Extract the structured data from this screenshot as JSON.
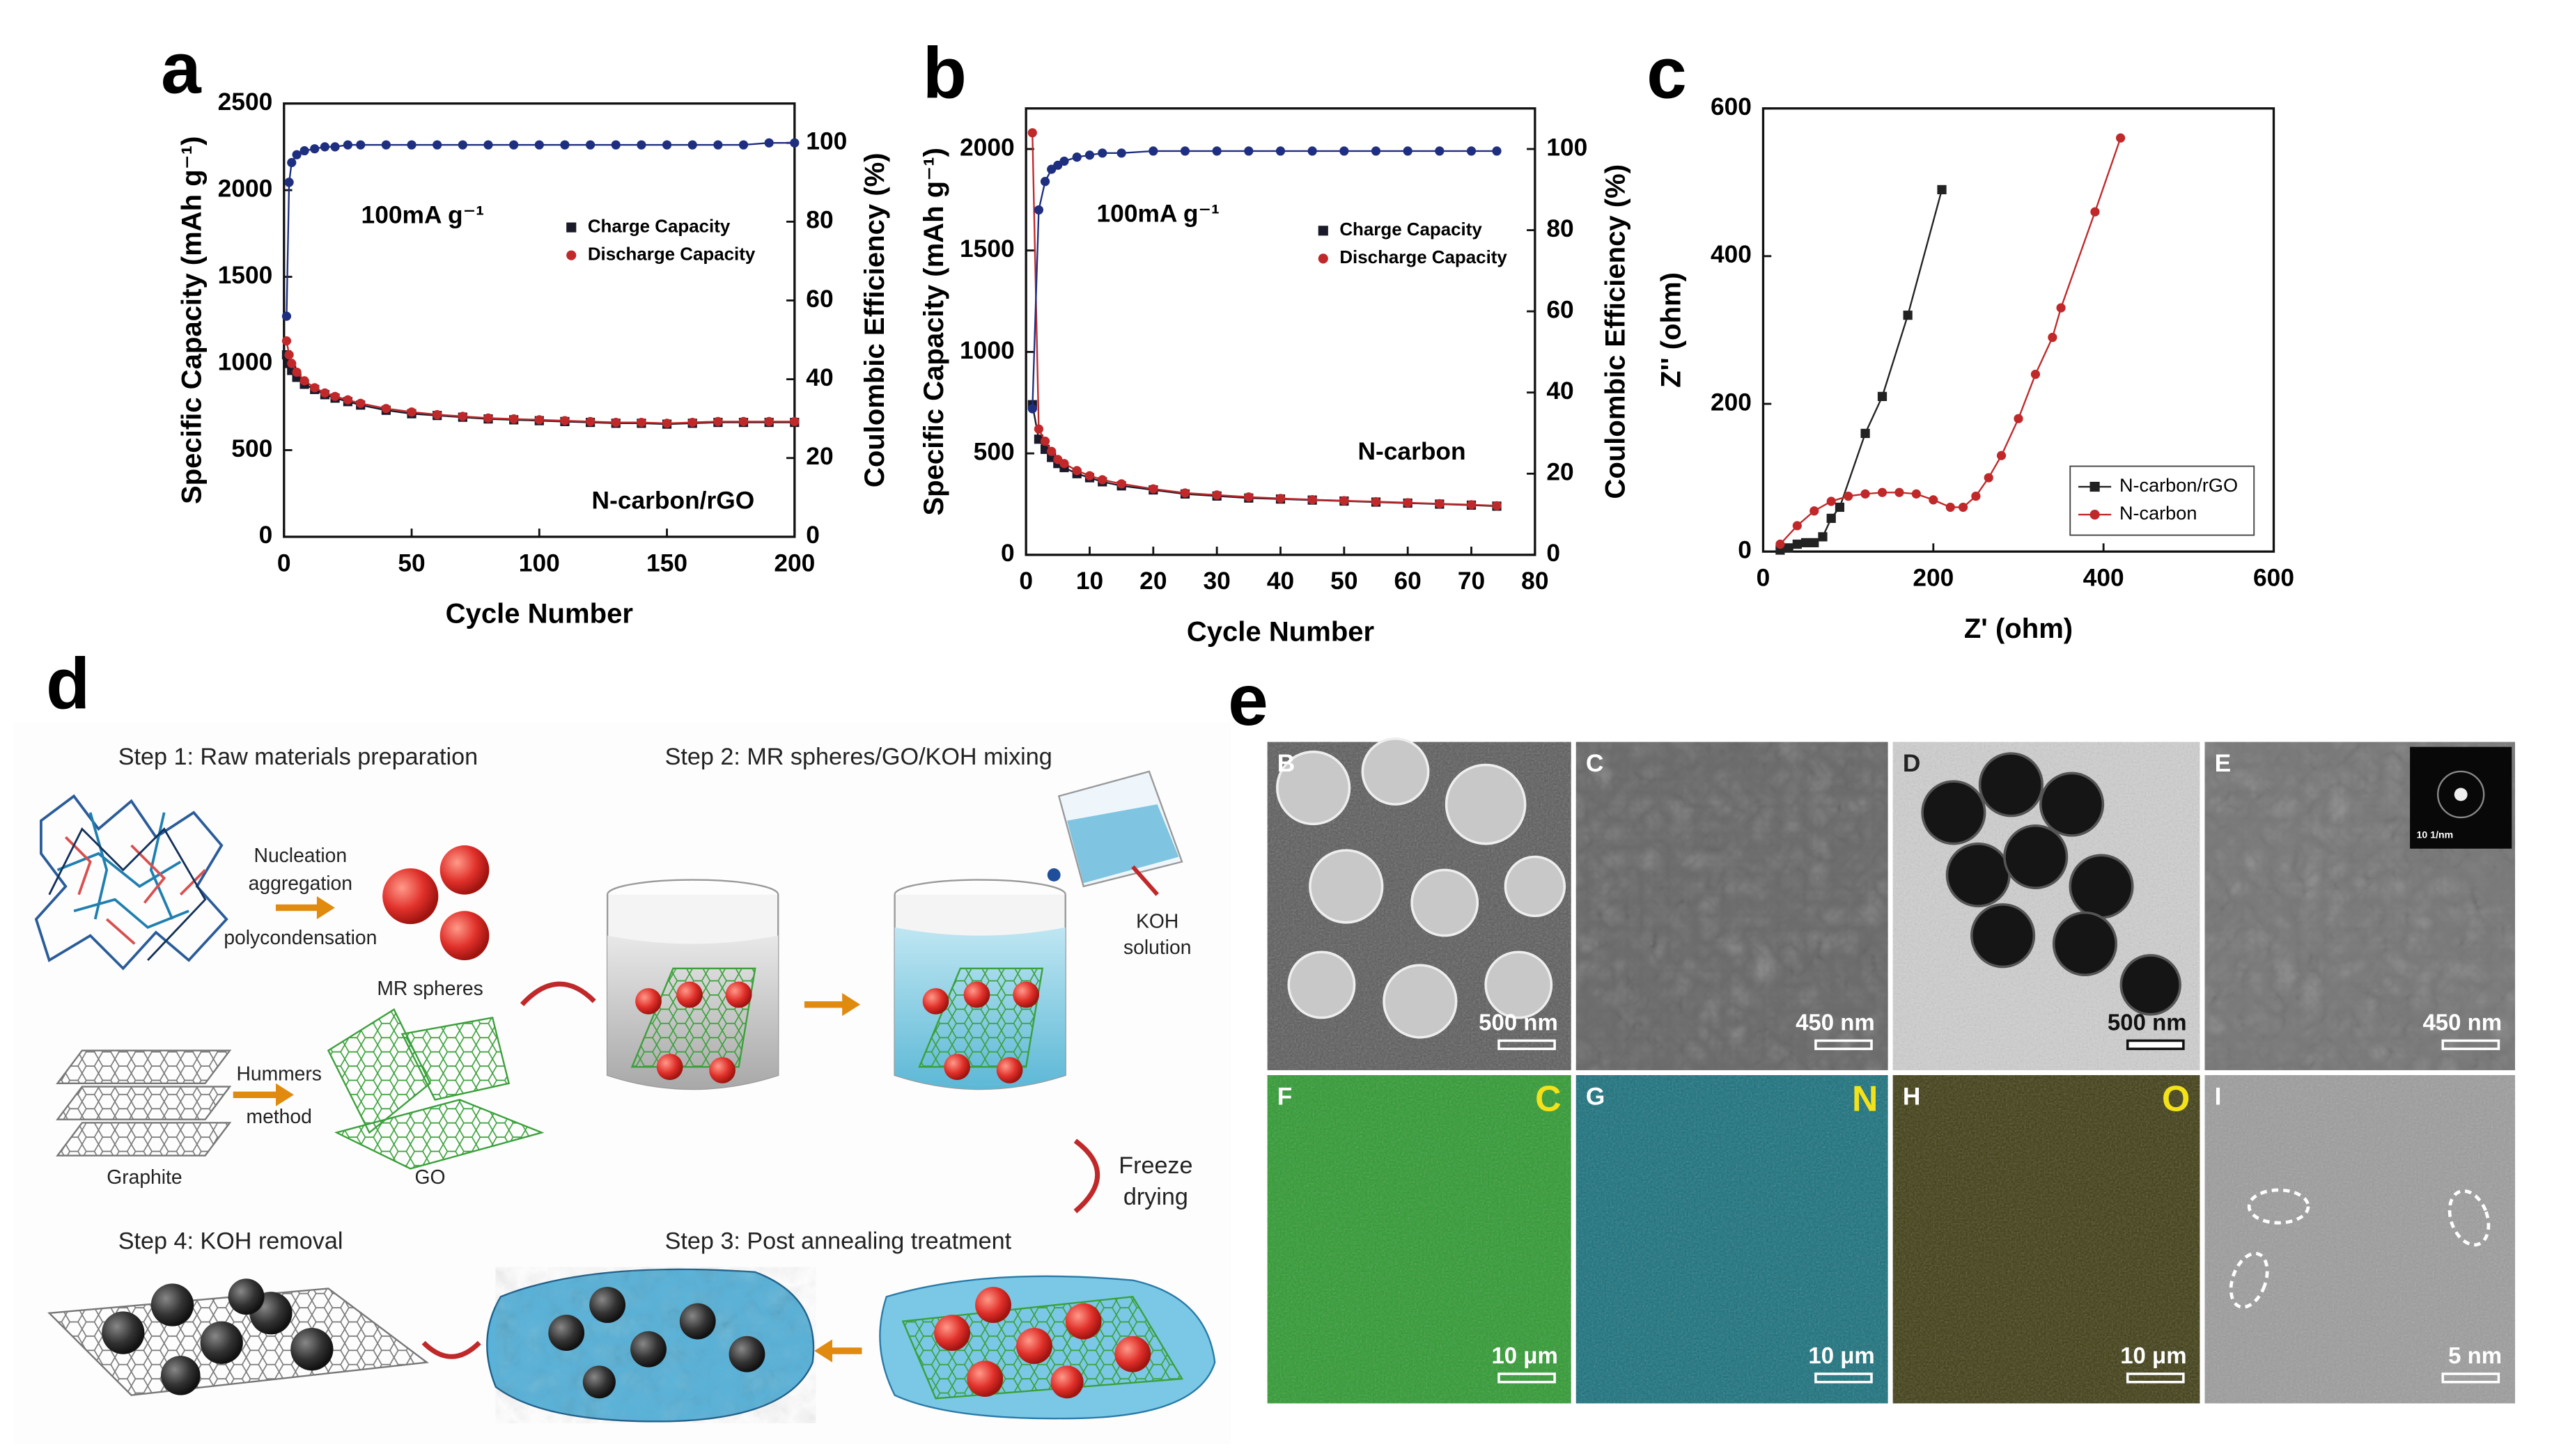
{
  "panel_labels": [
    "a",
    "b",
    "c",
    "d",
    "e"
  ],
  "chart_data": [
    {
      "type": "line",
      "xlabel": "Cycle Number",
      "ylabel": "Specific Capacity (mAh g⁻¹)",
      "y2label": "Coulombic Efficiency (%)",
      "annotations": [
        "100mA g⁻¹",
        "N-carbon/rGO"
      ],
      "xlim": [
        0,
        200
      ],
      "xticks": [
        0,
        50,
        100,
        150,
        200
      ],
      "ylim": [
        0,
        2500
      ],
      "yticks": [
        0,
        500,
        1000,
        1500,
        2000,
        2500
      ],
      "y2lim": [
        0,
        110
      ],
      "y2ticks": [
        0,
        20,
        40,
        60,
        80,
        100
      ],
      "legend": "upper right",
      "x": [
        1,
        2,
        3,
        5,
        8,
        12,
        16,
        20,
        25,
        30,
        40,
        50,
        60,
        70,
        80,
        90,
        100,
        110,
        120,
        130,
        140,
        150,
        160,
        170,
        180,
        190,
        200
      ],
      "series": [
        {
          "name": "Charge Capacity",
          "color": "#1a1a2a",
          "marker": "square",
          "values": [
            1050,
            1000,
            960,
            920,
            880,
            850,
            820,
            800,
            780,
            760,
            730,
            710,
            700,
            690,
            680,
            675,
            670,
            665,
            660,
            655,
            655,
            650,
            655,
            660,
            660,
            660,
            660
          ]
        },
        {
          "name": "Discharge Capacity",
          "color": "#c0282a",
          "marker": "circle",
          "values": [
            1130,
            1050,
            1000,
            950,
            900,
            860,
            830,
            810,
            790,
            770,
            740,
            720,
            705,
            695,
            685,
            680,
            675,
            670,
            665,
            660,
            660,
            655,
            660,
            665,
            665,
            665,
            665
          ]
        },
        {
          "color": "#1f2f80",
          "marker": "circle",
          "axis": "y2",
          "values": [
            56,
            90,
            95,
            97,
            98,
            98.5,
            99,
            99,
            99.5,
            99.5,
            99.5,
            99.5,
            99.5,
            99.5,
            99.5,
            99.5,
            99.5,
            99.5,
            99.5,
            99.5,
            99.5,
            99.5,
            99.5,
            99.5,
            99.5,
            100,
            100
          ]
        }
      ]
    },
    {
      "type": "line",
      "xlabel": "Cycle Number",
      "ylabel": "Specific Capacity (mAh g⁻¹)",
      "y2label": "Coulombic Efficiency (%)",
      "annotations": [
        "100mA g⁻¹",
        "N-carbon"
      ],
      "xlim": [
        0,
        80
      ],
      "xticks": [
        0,
        10,
        20,
        30,
        40,
        50,
        60,
        70,
        80
      ],
      "ylim": [
        0,
        2200
      ],
      "yticks": [
        0,
        500,
        1000,
        1500,
        2000
      ],
      "y2lim": [
        0,
        110
      ],
      "y2ticks": [
        0,
        20,
        40,
        60,
        80,
        100
      ],
      "legend": "upper right",
      "x": [
        1,
        2,
        3,
        4,
        5,
        6,
        8,
        10,
        12,
        15,
        20,
        25,
        30,
        35,
        40,
        45,
        50,
        55,
        60,
        65,
        70,
        74
      ],
      "series": [
        {
          "name": "Charge Capacity",
          "color": "#1a1a2a",
          "marker": "square",
          "values": [
            740,
            570,
            520,
            480,
            450,
            430,
            400,
            380,
            360,
            340,
            320,
            300,
            290,
            280,
            275,
            270,
            265,
            260,
            255,
            250,
            245,
            240
          ]
        },
        {
          "name": "Discharge Capacity",
          "color": "#c0282a",
          "marker": "circle",
          "values": [
            2080,
            620,
            560,
            510,
            470,
            450,
            415,
            390,
            370,
            350,
            325,
            305,
            295,
            285,
            278,
            272,
            267,
            262,
            257,
            252,
            247,
            242
          ]
        },
        {
          "color": "#1f2f80",
          "marker": "circle",
          "axis": "y2",
          "values": [
            36,
            85,
            92,
            95,
            96,
            97,
            98,
            98.5,
            99,
            99,
            99.5,
            99.5,
            99.5,
            99.5,
            99.5,
            99.5,
            99.5,
            99.5,
            99.5,
            99.5,
            99.5,
            99.5
          ]
        }
      ]
    },
    {
      "type": "line",
      "xlabel": "Z' (ohm)",
      "ylabel": "Z'' (ohm)",
      "annotations": [],
      "xlim": [
        0,
        600
      ],
      "xticks": [
        0,
        200,
        400,
        600
      ],
      "ylim": [
        0,
        600
      ],
      "yticks": [
        0,
        200,
        400,
        600
      ],
      "legend": "lower right",
      "series": [
        {
          "name": "N-carbon/rGO",
          "color": "#222222",
          "marker": "square",
          "x": [
            20,
            30,
            40,
            50,
            60,
            70,
            80,
            90,
            120,
            140,
            170,
            210
          ],
          "values": [
            2,
            5,
            10,
            12,
            12,
            20,
            45,
            60,
            160,
            210,
            320,
            490
          ]
        },
        {
          "name": "N-carbon",
          "color": "#c0282a",
          "marker": "circle",
          "x": [
            20,
            40,
            60,
            80,
            100,
            120,
            140,
            160,
            180,
            200,
            220,
            235,
            250,
            265,
            280,
            300,
            320,
            340,
            350,
            390,
            420
          ],
          "values": [
            10,
            35,
            55,
            68,
            75,
            78,
            80,
            80,
            78,
            70,
            60,
            60,
            75,
            100,
            130,
            180,
            240,
            290,
            330,
            460,
            560
          ]
        }
      ]
    }
  ],
  "diagram": {
    "steps": [
      "Step 1: Raw materials preparation",
      "Step 2: MR spheres/GO/KOH mixing",
      "Step 3: Post annealing treatment",
      "Step 4: KOH removal"
    ],
    "labels": [
      "Nucleation",
      "aggregation",
      "polycondensation",
      "MR spheres",
      "Hummers",
      "method",
      "Graphite",
      "GO",
      "KOH",
      "solution",
      "Freeze",
      "drying"
    ]
  },
  "micrographs": {
    "tiles": [
      {
        "label": "B",
        "scale_bar": "500 nm"
      },
      {
        "label": "C",
        "scale_bar": "450 nm"
      },
      {
        "label": "D",
        "scale_bar": "500 nm"
      },
      {
        "label": "E",
        "scale_bar": "450 nm"
      },
      {
        "label": "F",
        "element": "C",
        "scale_bar": "10 μm"
      },
      {
        "label": "G",
        "element": "N",
        "scale_bar": "10 μm"
      },
      {
        "label": "H",
        "element": "O",
        "scale_bar": "10 μm"
      },
      {
        "label": "I",
        "scale_bar": "5 nm"
      }
    ],
    "inset_scale": "10 1/nm"
  }
}
